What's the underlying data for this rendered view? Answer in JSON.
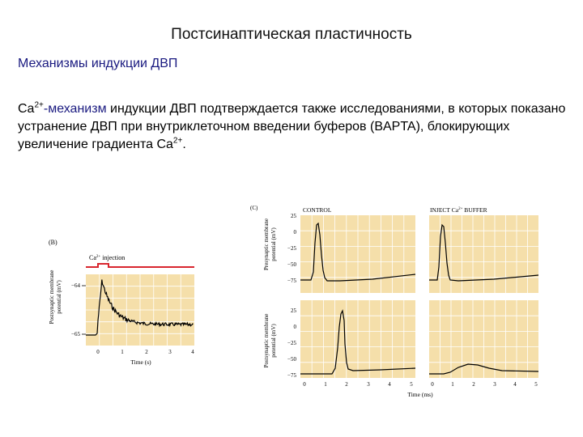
{
  "slide": {
    "title": "Постсинаптическая пластичность",
    "subtitle": "Механизмы индукции ДВП",
    "paragraph": {
      "ca_base": "Ca",
      "ca_sup": "2+",
      "part1_blue": "-механизм",
      "part1_rest": " индукции ДВП подтверждается также исследованиями, в которых показано устранение ДВП при внутриклеточном введении буферов (BAPTA), блокирующих увеличение градиента Ca",
      "end_sup": "2+",
      "end": "."
    }
  },
  "figure_b": {
    "panel_label": "(B)",
    "annotation": "Ca",
    "annotation_sup": "2+",
    "annotation_rest": " injection",
    "ylabel_line1": "Postsynaptic membrane",
    "ylabel_line2": "potential (mV)",
    "yticks": [
      "−64",
      "−65"
    ],
    "xticks": [
      "0",
      "1",
      "2",
      "3",
      "4"
    ],
    "xlabel": "Time (s)",
    "colors": {
      "panel_bg": "#f5dfaa",
      "annotation_line": "#d8262e"
    }
  },
  "figure_c": {
    "panel_label": "(C)",
    "col_titles": {
      "control": "CONTROL",
      "buffer_pre": "INJECT Ca",
      "buffer_sup": "2+",
      "buffer_post": " BUFFER"
    },
    "top_ylabel_line1": "Presynaptic membrane",
    "top_ylabel_line2": "potential (mV)",
    "bottom_ylabel_line1": "Postsynaptic membrane",
    "bottom_ylabel_line2": "potential (mV)",
    "yticks": [
      "25",
      "0",
      "−25",
      "−50",
      "−75"
    ],
    "xticks": [
      "0",
      "1",
      "2",
      "3",
      "4",
      "5"
    ],
    "xlabel": "Time (ms)",
    "colors": {
      "panel_bg": "#f5dfaa"
    }
  }
}
